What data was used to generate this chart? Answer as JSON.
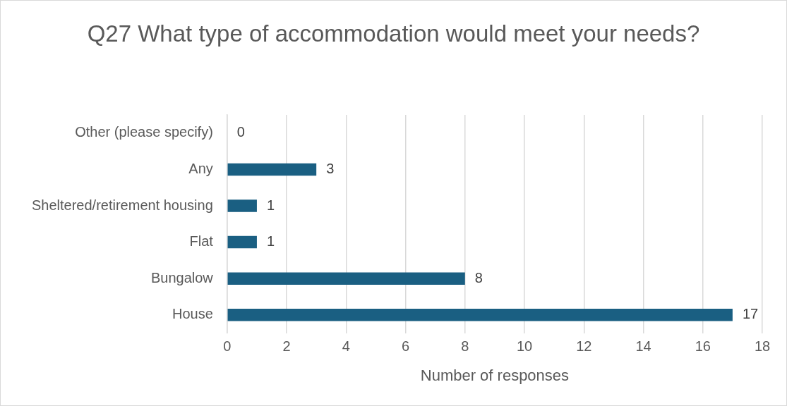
{
  "chart_data": {
    "type": "bar",
    "orientation": "horizontal",
    "title": "Q27 What type of accommodation would meet your needs?",
    "xlabel": "Number of responses",
    "categories": [
      "Other (please specify)",
      "Any",
      "Sheltered/retirement housing",
      "Flat",
      "Bungalow",
      "House"
    ],
    "values": [
      0,
      3,
      1,
      1,
      8,
      17
    ],
    "color": "#1a5f82",
    "xlim": [
      0,
      18
    ],
    "xticks": [
      0,
      2,
      4,
      6,
      8,
      10,
      12,
      14,
      16,
      18
    ],
    "grid": "x",
    "data_labels": true
  }
}
